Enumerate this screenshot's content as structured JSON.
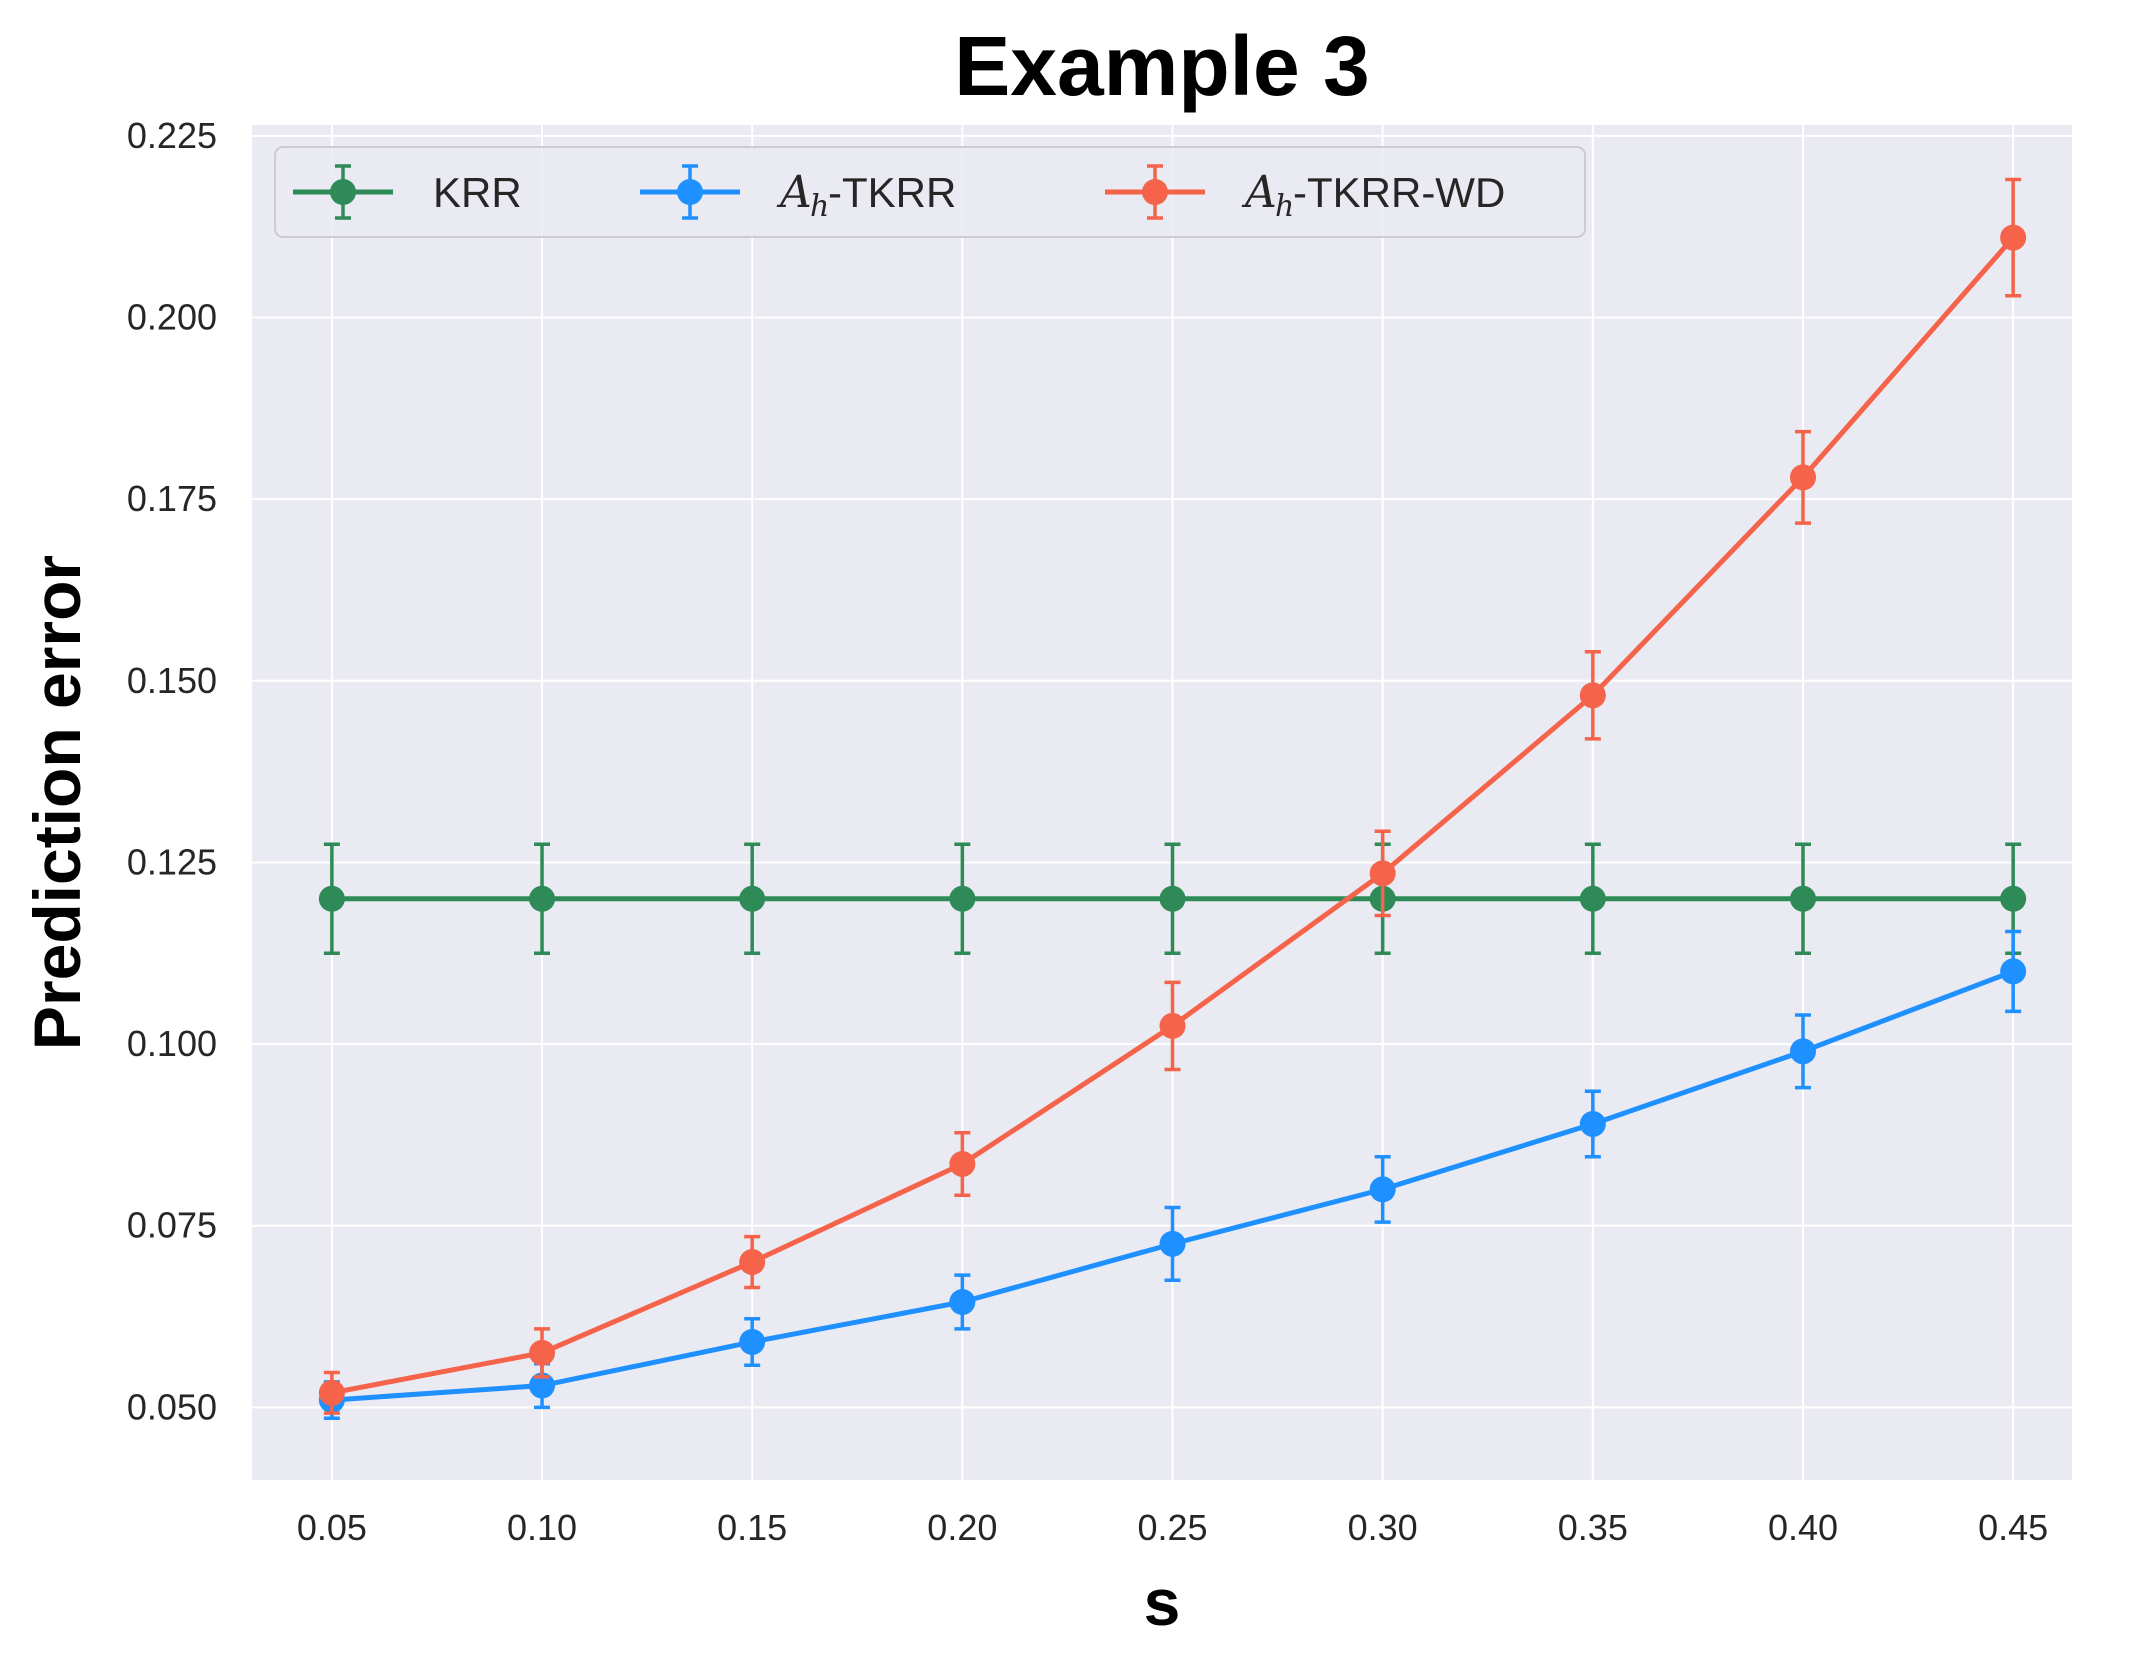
{
  "chart_data": {
    "type": "line",
    "title": "Example 3",
    "xlabel": "s",
    "ylabel": "Prediction error",
    "x": [
      0.05,
      0.1,
      0.15,
      0.2,
      0.25,
      0.3,
      0.35,
      0.4,
      0.45
    ],
    "x_tick_labels": [
      "0.05",
      "0.10",
      "0.15",
      "0.20",
      "0.25",
      "0.30",
      "0.35",
      "0.40",
      "0.45"
    ],
    "y_ticks": [
      0.05,
      0.075,
      0.1,
      0.125,
      0.15,
      0.175,
      0.2,
      0.225
    ],
    "y_tick_labels": [
      "0.050",
      "0.075",
      "0.100",
      "0.125",
      "0.150",
      "0.175",
      "0.200",
      "0.225"
    ],
    "xlim": [
      0.031,
      0.464
    ],
    "ylim": [
      0.04,
      0.2265
    ],
    "grid": true,
    "legend_position": "top-left",
    "legend_columns": 3,
    "background_color": "#EAEAF2",
    "grid_color": "#FFFFFF",
    "series": [
      {
        "name": "KRR",
        "legend_math": "",
        "legend_suffix": "KRR",
        "color": "#2E8B57",
        "values": [
          0.12,
          0.12,
          0.12,
          0.12,
          0.12,
          0.12,
          0.12,
          0.12,
          0.12
        ],
        "errors": [
          0.0075,
          0.0075,
          0.0075,
          0.0075,
          0.0075,
          0.0075,
          0.0075,
          0.0075,
          0.0075
        ]
      },
      {
        "name": "Ah-TKRR",
        "legend_math": "A",
        "legend_sub": "h",
        "legend_suffix": "-TKRR",
        "color": "#1E90FF",
        "values": [
          0.051,
          0.053,
          0.059,
          0.0645,
          0.0725,
          0.08,
          0.089,
          0.099,
          0.11
        ],
        "errors": [
          0.0025,
          0.003,
          0.0032,
          0.0037,
          0.005,
          0.0045,
          0.0045,
          0.005,
          0.0055
        ]
      },
      {
        "name": "Ah-TKRR-WD",
        "legend_math": "A",
        "legend_sub": "h",
        "legend_suffix": "-TKRR-WD",
        "color": "#F4634A",
        "values": [
          0.052,
          0.0575,
          0.07,
          0.0835,
          0.1025,
          0.1235,
          0.148,
          0.178,
          0.211
        ],
        "errors": [
          0.0028,
          0.0033,
          0.0035,
          0.0043,
          0.006,
          0.0058,
          0.006,
          0.0063,
          0.008
        ]
      }
    ]
  }
}
